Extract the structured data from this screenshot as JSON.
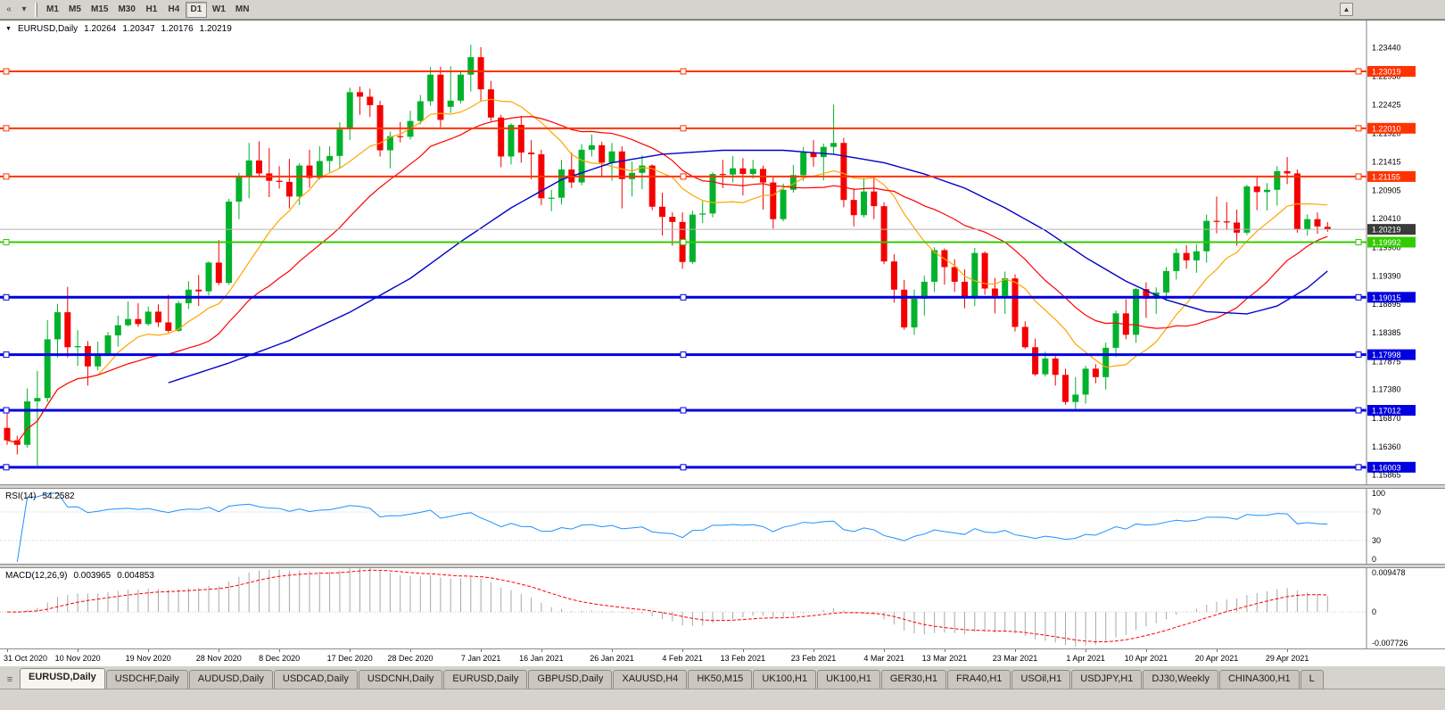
{
  "toolbar": {
    "icons": [
      {
        "name": "scroll-left-icon",
        "glyph": "«"
      },
      {
        "name": "charts-dropdown-icon",
        "glyph": "▾"
      }
    ],
    "corner_glyph": "▲",
    "timeframes": [
      "M1",
      "M5",
      "M15",
      "M30",
      "H1",
      "H4",
      "D1",
      "W1",
      "MN"
    ],
    "active_timeframe": "D1"
  },
  "chart_data": {
    "type": "candlestick",
    "collapse_glyph": "▼",
    "symbol_period": "EURUSD,Daily",
    "ohlc_header": {
      "open": "1.20264",
      "high": "1.20347",
      "low": "1.20176",
      "close": "1.20219"
    },
    "ylim": [
      1.157,
      1.2392
    ],
    "y_axis_labels": [
      "1.23440",
      "1.22930",
      "1.22425",
      "1.21920",
      "1.21415",
      "1.20905",
      "1.20410",
      "1.19900",
      "1.19390",
      "1.18895",
      "1.18385",
      "1.17875",
      "1.17380",
      "1.16870",
      "1.16360",
      "1.15865"
    ],
    "x_axis_labels": [
      {
        "label": "31 Oct 2020",
        "i": 0
      },
      {
        "label": "10 Nov 2020",
        "i": 7
      },
      {
        "label": "19 Nov 2020",
        "i": 14
      },
      {
        "label": "28 Nov 2020",
        "i": 21
      },
      {
        "label": "8 Dec 2020",
        "i": 27
      },
      {
        "label": "17 Dec 2020",
        "i": 34
      },
      {
        "label": "28 Dec 2020",
        "i": 40
      },
      {
        "label": "7 Jan 2021",
        "i": 47
      },
      {
        "label": "16 Jan 2021",
        "i": 53
      },
      {
        "label": "26 Jan 2021",
        "i": 60
      },
      {
        "label": "4 Feb 2021",
        "i": 67
      },
      {
        "label": "13 Feb 2021",
        "i": 73
      },
      {
        "label": "23 Feb 2021",
        "i": 80
      },
      {
        "label": "4 Mar 2021",
        "i": 87
      },
      {
        "label": "13 Mar 2021",
        "i": 93
      },
      {
        "label": "23 Mar 2021",
        "i": 100
      },
      {
        "label": "1 Apr 2021",
        "i": 107
      },
      {
        "label": "10 Apr 2021",
        "i": 113
      },
      {
        "label": "20 Apr 2021",
        "i": 120
      },
      {
        "label": "29 Apr 2021",
        "i": 127
      }
    ],
    "current_price": {
      "value": 1.20219,
      "label": "1.20219",
      "color": "#3a3a3a"
    },
    "hlines": [
      {
        "value": 1.23019,
        "label": "1.23019",
        "color": "#ff3300",
        "width": 2
      },
      {
        "value": 1.2201,
        "label": "1.22010",
        "color": "#ff3300",
        "width": 2
      },
      {
        "value": 1.21155,
        "label": "1.21155",
        "color": "#ff3300",
        "width": 2
      },
      {
        "value": 1.19992,
        "label": "1.19992",
        "color": "#33cc00",
        "width": 2
      },
      {
        "value": 1.19015,
        "label": "1.19015",
        "color": "#0000e0",
        "width": 3
      },
      {
        "value": 1.17998,
        "label": "1.17998",
        "color": "#0000e0",
        "width": 3
      },
      {
        "value": 1.17012,
        "label": "1.17012",
        "color": "#0000e0",
        "width": 3
      },
      {
        "value": 1.16003,
        "label": "1.16003",
        "color": "#0000e0",
        "width": 3
      }
    ],
    "moving_averages": [
      {
        "name": "ma-fast",
        "period": 10,
        "color": "#ffa500"
      },
      {
        "name": "ma-mid",
        "period": 21,
        "color": "#ff0000"
      },
      {
        "name": "ma-slow",
        "period": 100,
        "color": "#0000cc"
      }
    ],
    "ma_slow_path": [
      [
        16,
        1.175
      ],
      [
        22,
        1.1785
      ],
      [
        28,
        1.1825
      ],
      [
        34,
        1.1875
      ],
      [
        40,
        1.1935
      ],
      [
        45,
        1.2
      ],
      [
        50,
        1.206
      ],
      [
        55,
        1.211
      ],
      [
        60,
        1.214
      ],
      [
        65,
        1.2155
      ],
      [
        71,
        1.2162
      ],
      [
        77,
        1.2162
      ],
      [
        82,
        1.2155
      ],
      [
        87,
        1.214
      ],
      [
        91,
        1.212
      ],
      [
        95,
        1.2095
      ],
      [
        99,
        1.206
      ],
      [
        103,
        1.202
      ],
      [
        107,
        1.1972
      ],
      [
        111,
        1.193
      ],
      [
        115,
        1.1897
      ],
      [
        119,
        1.1876
      ],
      [
        123,
        1.1872
      ],
      [
        126,
        1.1886
      ],
      [
        129,
        1.1918
      ],
      [
        131,
        1.1948
      ]
    ],
    "colors": {
      "bull": "#00b22c",
      "bear": "#f40000",
      "background": "#ffffff",
      "axis_text": "#000000"
    },
    "candles": [
      [
        1.167,
        1.1704,
        1.164,
        1.1648
      ],
      [
        1.1648,
        1.1656,
        1.1623,
        1.164
      ],
      [
        1.164,
        1.174,
        1.1635,
        1.1717
      ],
      [
        1.1717,
        1.1771,
        1.1603,
        1.1723
      ],
      [
        1.1723,
        1.1861,
        1.1716,
        1.1827
      ],
      [
        1.1827,
        1.189,
        1.1795,
        1.1875
      ],
      [
        1.1875,
        1.192,
        1.1795,
        1.1813
      ],
      [
        1.1813,
        1.1843,
        1.178,
        1.1815
      ],
      [
        1.1815,
        1.1824,
        1.1745,
        1.1779
      ],
      [
        1.1779,
        1.1823,
        1.1772,
        1.1801
      ],
      [
        1.1801,
        1.184,
        1.1799,
        1.1834
      ],
      [
        1.1834,
        1.1869,
        1.1814,
        1.1852
      ],
      [
        1.1852,
        1.1894,
        1.185,
        1.1863
      ],
      [
        1.1863,
        1.1891,
        1.1849,
        1.1854
      ],
      [
        1.1854,
        1.1885,
        1.1851,
        1.1876
      ],
      [
        1.1876,
        1.1889,
        1.1849,
        1.1857
      ],
      [
        1.1857,
        1.1906,
        1.1839,
        1.1842
      ],
      [
        1.1842,
        1.1895,
        1.184,
        1.1891
      ],
      [
        1.1891,
        1.193,
        1.1881,
        1.1915
      ],
      [
        1.1915,
        1.1941,
        1.1886,
        1.1912
      ],
      [
        1.1912,
        1.1965,
        1.1905,
        1.1963
      ],
      [
        1.1963,
        1.2003,
        1.1923,
        1.1927
      ],
      [
        1.1927,
        1.2076,
        1.1924,
        1.2071
      ],
      [
        1.2071,
        1.2122,
        1.204,
        1.2115
      ],
      [
        1.2115,
        1.2175,
        1.2077,
        1.2144
      ],
      [
        1.2144,
        1.2178,
        1.2115,
        1.2121
      ],
      [
        1.2121,
        1.2166,
        1.2079,
        1.2108
      ],
      [
        1.2108,
        1.2134,
        1.2094,
        1.2106
      ],
      [
        1.2106,
        1.2147,
        1.2059,
        1.208
      ],
      [
        1.208,
        1.2139,
        1.2065,
        1.2135
      ],
      [
        1.2135,
        1.2163,
        1.2096,
        1.2113
      ],
      [
        1.2113,
        1.2169,
        1.211,
        1.2143
      ],
      [
        1.2143,
        1.2169,
        1.2123,
        1.2152
      ],
      [
        1.2152,
        1.2212,
        1.2131,
        1.2199
      ],
      [
        1.2199,
        1.2273,
        1.218,
        1.2265
      ],
      [
        1.2265,
        1.2275,
        1.2225,
        1.2257
      ],
      [
        1.2257,
        1.2271,
        1.2221,
        1.2242
      ],
      [
        1.2242,
        1.225,
        1.2151,
        1.2162
      ],
      [
        1.2162,
        1.2195,
        1.213,
        1.2187
      ],
      [
        1.2187,
        1.2212,
        1.2176,
        1.2186
      ],
      [
        1.2186,
        1.2232,
        1.2181,
        1.2214
      ],
      [
        1.2214,
        1.226,
        1.2208,
        1.2249
      ],
      [
        1.2249,
        1.231,
        1.2241,
        1.2296
      ],
      [
        1.2296,
        1.231,
        1.2203,
        1.2216
      ],
      [
        1.2239,
        1.2311,
        1.2228,
        1.225
      ],
      [
        1.225,
        1.2304,
        1.2245,
        1.2296
      ],
      [
        1.2296,
        1.2349,
        1.2266,
        1.2327
      ],
      [
        1.2327,
        1.2345,
        1.225,
        1.227
      ],
      [
        1.227,
        1.2285,
        1.2214,
        1.222
      ],
      [
        1.222,
        1.2225,
        1.2132,
        1.2151
      ],
      [
        1.2151,
        1.221,
        1.2137,
        1.2207
      ],
      [
        1.2207,
        1.2223,
        1.214,
        1.2158
      ],
      [
        1.2158,
        1.218,
        1.2111,
        1.2155
      ],
      [
        1.2155,
        1.2163,
        1.2065,
        1.2077
      ],
      [
        1.2077,
        1.2092,
        1.2054,
        1.2078
      ],
      [
        1.2078,
        1.2145,
        1.2066,
        1.2128
      ],
      [
        1.2128,
        1.2158,
        1.2095,
        1.2105
      ],
      [
        1.2105,
        1.2173,
        1.21,
        1.2163
      ],
      [
        1.2163,
        1.219,
        1.2151,
        1.2171
      ],
      [
        1.2171,
        1.2177,
        1.2116,
        1.214
      ],
      [
        1.214,
        1.2175,
        1.2108,
        1.216
      ],
      [
        1.216,
        1.2169,
        1.2059,
        1.2111
      ],
      [
        1.2111,
        1.2142,
        1.208,
        1.2122
      ],
      [
        1.2122,
        1.2153,
        1.2093,
        1.2135
      ],
      [
        1.2135,
        1.2137,
        1.2056,
        1.2062
      ],
      [
        1.2062,
        1.2087,
        1.2011,
        1.2044
      ],
      [
        1.2044,
        1.2052,
        1.1993,
        1.2035
      ],
      [
        1.2035,
        1.2052,
        1.1952,
        1.1964
      ],
      [
        1.1964,
        1.2055,
        1.1961,
        1.2048
      ],
      [
        1.2048,
        1.2072,
        1.2033,
        1.205
      ],
      [
        1.205,
        1.2123,
        1.2043,
        1.212
      ],
      [
        1.212,
        1.2145,
        1.2095,
        1.2119
      ],
      [
        1.2119,
        1.2152,
        1.2105,
        1.213
      ],
      [
        1.213,
        1.2148,
        1.2082,
        1.212
      ],
      [
        1.212,
        1.2145,
        1.2112,
        1.2129
      ],
      [
        1.2129,
        1.2135,
        1.2057,
        1.2105
      ],
      [
        1.2105,
        1.2114,
        1.2023,
        1.204
      ],
      [
        1.204,
        1.2103,
        1.2036,
        1.2092
      ],
      [
        1.2092,
        1.2136,
        1.2087,
        1.2118
      ],
      [
        1.2118,
        1.2168,
        1.2108,
        1.2158
      ],
      [
        1.2158,
        1.218,
        1.2133,
        1.215
      ],
      [
        1.215,
        1.2174,
        1.2109,
        1.2168
      ],
      [
        1.2168,
        1.2243,
        1.2156,
        1.2175
      ],
      [
        1.2175,
        1.2184,
        1.2061,
        1.2074
      ],
      [
        1.2074,
        1.2095,
        1.2027,
        1.2047
      ],
      [
        1.2047,
        1.2113,
        1.2043,
        1.2089
      ],
      [
        1.2089,
        1.2113,
        1.204,
        1.2063
      ],
      [
        1.2063,
        1.207,
        1.196,
        1.1965
      ],
      [
        1.1965,
        1.1978,
        1.1892,
        1.1915
      ],
      [
        1.1915,
        1.1932,
        1.1844,
        1.1848
      ],
      [
        1.1848,
        1.1915,
        1.1835,
        1.1899
      ],
      [
        1.1899,
        1.194,
        1.1869,
        1.1929
      ],
      [
        1.1929,
        1.199,
        1.1911,
        1.1985
      ],
      [
        1.1985,
        1.1988,
        1.1924,
        1.1955
      ],
      [
        1.1955,
        1.1969,
        1.1911,
        1.1929
      ],
      [
        1.1929,
        1.1951,
        1.1882,
        1.1901
      ],
      [
        1.1901,
        1.1989,
        1.1886,
        1.198
      ],
      [
        1.198,
        1.1983,
        1.1906,
        1.1917
      ],
      [
        1.1917,
        1.1936,
        1.1873,
        1.1904
      ],
      [
        1.1904,
        1.1947,
        1.1872,
        1.1935
      ],
      [
        1.1935,
        1.1942,
        1.1841,
        1.1849
      ],
      [
        1.1849,
        1.1859,
        1.181,
        1.1813
      ],
      [
        1.1813,
        1.1828,
        1.1762,
        1.1765
      ],
      [
        1.1765,
        1.1805,
        1.1761,
        1.1793
      ],
      [
        1.1793,
        1.1797,
        1.1745,
        1.1764
      ],
      [
        1.1764,
        1.1775,
        1.1711,
        1.1716
      ],
      [
        1.1716,
        1.176,
        1.1704,
        1.1729
      ],
      [
        1.1729,
        1.178,
        1.1713,
        1.1775
      ],
      [
        1.1775,
        1.1783,
        1.1749,
        1.176
      ],
      [
        1.176,
        1.1821,
        1.1738,
        1.1812
      ],
      [
        1.1812,
        1.1878,
        1.1796,
        1.1873
      ],
      [
        1.1873,
        1.1898,
        1.1827,
        1.1835
      ],
      [
        1.1835,
        1.1918,
        1.1821,
        1.1916
      ],
      [
        1.1916,
        1.1928,
        1.1865,
        1.1899
      ],
      [
        1.1899,
        1.1919,
        1.1872,
        1.191
      ],
      [
        1.191,
        1.1955,
        1.1895,
        1.1948
      ],
      [
        1.1948,
        1.1988,
        1.1933,
        1.198
      ],
      [
        1.198,
        1.1994,
        1.1952,
        1.1967
      ],
      [
        1.1967,
        1.1995,
        1.1945,
        1.1983
      ],
      [
        1.1983,
        1.2048,
        1.1963,
        1.2037
      ],
      [
        1.2037,
        1.208,
        1.2015,
        1.2036
      ],
      [
        1.2036,
        1.207,
        1.2021,
        1.2034
      ],
      [
        1.2034,
        1.2057,
        1.1993,
        1.2016
      ],
      [
        1.2016,
        1.2101,
        1.2012,
        1.2098
      ],
      [
        1.2098,
        1.2117,
        1.2056,
        1.2088
      ],
      [
        1.2088,
        1.2104,
        1.2055,
        1.2092
      ],
      [
        1.2092,
        1.2134,
        1.2064,
        1.2125
      ],
      [
        1.2125,
        1.215,
        1.2102,
        1.2121
      ],
      [
        1.2121,
        1.2128,
        1.2016,
        1.2022
      ],
      [
        1.2022,
        1.2048,
        1.2011,
        1.204
      ],
      [
        1.204,
        1.2052,
        1.2014,
        1.2027
      ],
      [
        1.20264,
        1.20347,
        1.20176,
        1.20219
      ]
    ],
    "rsi": {
      "label": "RSI(14)",
      "value": "54.2582",
      "color": "#1e90ff",
      "levels": [
        70,
        30
      ],
      "ylim": [
        0,
        100
      ],
      "axis_labels": [
        "100",
        "70",
        "30",
        "0"
      ],
      "axis_values": [
        100,
        70,
        30,
        0
      ]
    },
    "macd": {
      "label": "MACD(12,26,9)",
      "value": "0.003965",
      "signal_value": "0.004853",
      "histogram_color": "#a8a8a8",
      "signal_color": "#ff0000",
      "ylim": [
        -0.0085,
        0.0102
      ],
      "axis_labels": [
        "0.009478",
        "0",
        "-0.007726"
      ],
      "axis_values": [
        0.009478,
        0,
        -0.007726
      ]
    }
  },
  "tabs": {
    "items": [
      {
        "label": "EURUSD,Daily",
        "active": true
      },
      {
        "label": "USDCHF,Daily",
        "active": false
      },
      {
        "label": "AUDUSD,Daily",
        "active": false
      },
      {
        "label": "USDCAD,Daily",
        "active": false
      },
      {
        "label": "USDCNH,Daily",
        "active": false
      },
      {
        "label": "EURUSD,Daily",
        "active": false
      },
      {
        "label": "GBPUSD,Daily",
        "active": false
      },
      {
        "label": "XAUUSD,H4",
        "active": false
      },
      {
        "label": "HK50,M15",
        "active": false
      },
      {
        "label": "UK100,H1",
        "active": false
      },
      {
        "label": "UK100,H1",
        "active": false
      },
      {
        "label": "GER30,H1",
        "active": false
      },
      {
        "label": "FRA40,H1",
        "active": false
      },
      {
        "label": "USOil,H1",
        "active": false
      },
      {
        "label": "USDJPY,H1",
        "active": false
      },
      {
        "label": "DJ30,Weekly",
        "active": false
      },
      {
        "label": "CHINA300,H1",
        "active": false
      },
      {
        "label": "L",
        "active": false
      }
    ],
    "menu_glyph": "≡"
  }
}
